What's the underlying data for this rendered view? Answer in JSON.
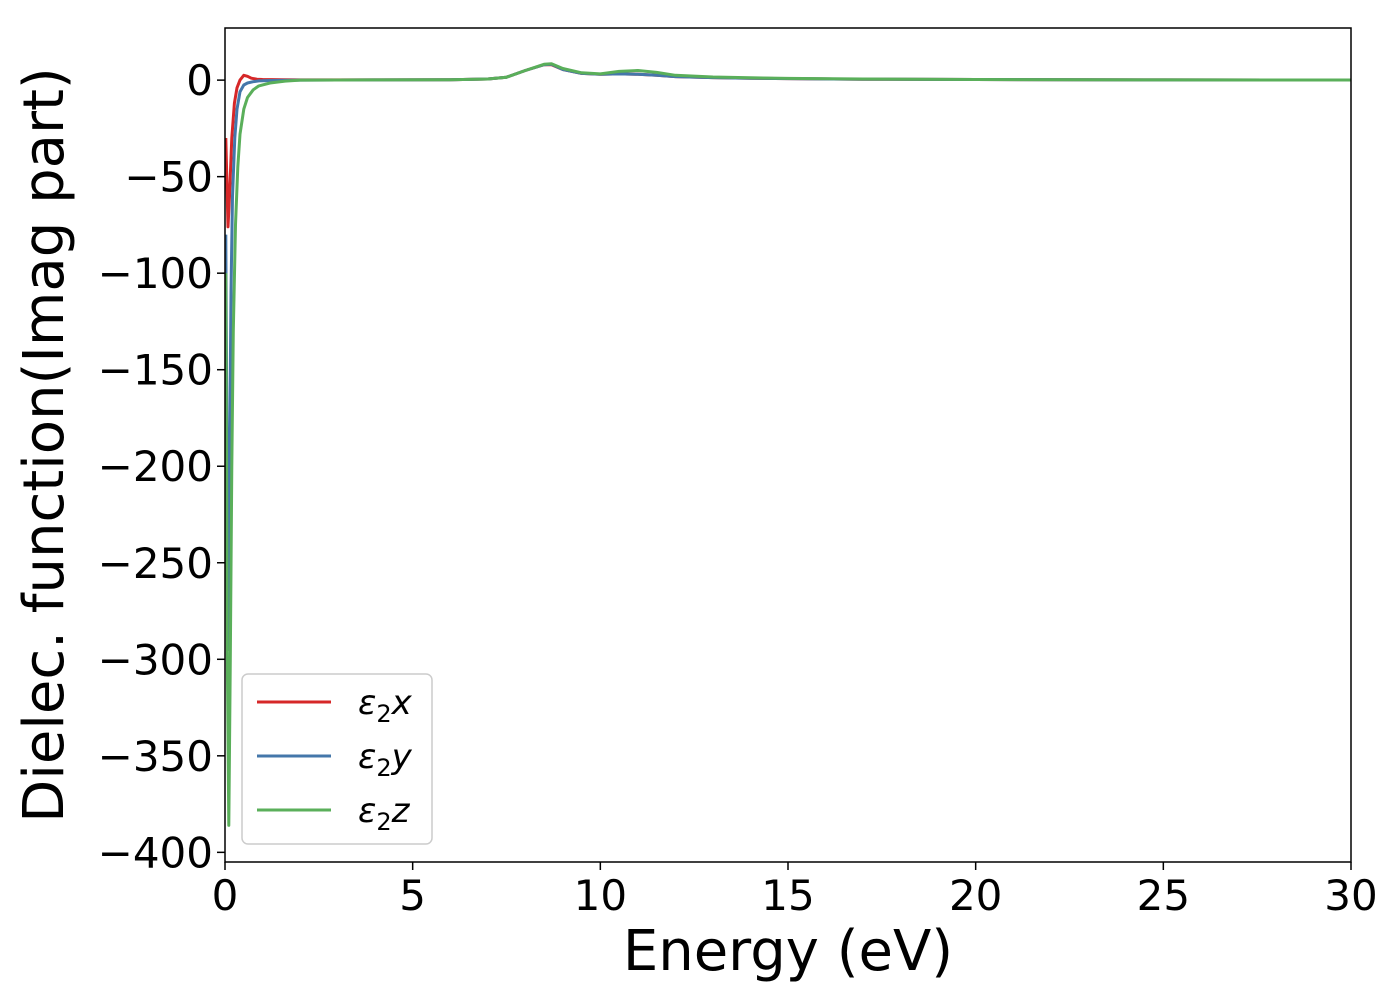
{
  "chart_data": {
    "type": "line",
    "title": "",
    "xlabel": "Energy (eV)",
    "ylabel": "Dielec. function(Imag part)",
    "xlim": [
      0,
      30
    ],
    "ylim": [
      -405,
      27
    ],
    "x_ticks": [
      0,
      5,
      10,
      15,
      20,
      25,
      30
    ],
    "y_ticks": [
      0,
      -50,
      -100,
      -150,
      -200,
      -250,
      -300,
      -350,
      -400
    ],
    "x_tick_labels": [
      "0",
      "5",
      "10",
      "15",
      "20",
      "25",
      "30"
    ],
    "y_tick_labels": [
      "0",
      "−50",
      "−100",
      "−150",
      "−200",
      "−250",
      "−300",
      "−350",
      "−400"
    ],
    "grid": false,
    "legend_position": "lower-left",
    "series": [
      {
        "name": "ε₂x",
        "legend_base": "ε",
        "legend_sub": "2",
        "legend_tail": "x",
        "color": "#d62728",
        "x": [
          0.02,
          0.08,
          0.12,
          0.18,
          0.25,
          0.32,
          0.4,
          0.5,
          0.6,
          0.7,
          0.85,
          1.0,
          1.5,
          2.0,
          4.0,
          6.0,
          7.0,
          7.5,
          8.0,
          8.5,
          8.7,
          9.0,
          9.5,
          10.0,
          10.5,
          11.0,
          11.5,
          12.0,
          13.0,
          14.0,
          15.0,
          17.0,
          20.0,
          25.0,
          30.0
        ],
        "y": [
          -30,
          -76,
          -60,
          -30,
          -12,
          -4,
          0,
          2.5,
          2.0,
          1.0,
          0.5,
          0.3,
          0.2,
          0.1,
          0.1,
          0.2,
          0.6,
          1.5,
          5.0,
          8.0,
          8.0,
          5.5,
          3.5,
          3.0,
          3.2,
          3.0,
          2.5,
          1.8,
          1.3,
          1.0,
          0.8,
          0.5,
          0.3,
          0.1,
          0.05
        ]
      },
      {
        "name": "ε₂y",
        "legend_base": "ε",
        "legend_sub": "2",
        "legend_tail": "y",
        "color": "#4477aa",
        "x": [
          0.02,
          0.08,
          0.12,
          0.16,
          0.2,
          0.26,
          0.32,
          0.4,
          0.5,
          0.6,
          0.75,
          0.9,
          1.2,
          2.0,
          4.0,
          6.0,
          7.0,
          7.5,
          8.0,
          8.5,
          8.7,
          9.0,
          9.5,
          10.0,
          10.5,
          11.0,
          11.5,
          12.0,
          13.0,
          14.0,
          15.0,
          17.0,
          20.0,
          25.0,
          30.0
        ],
        "y": [
          -80,
          -295,
          -200,
          -110,
          -60,
          -30,
          -15,
          -6,
          -2.5,
          -1.5,
          -0.8,
          -0.4,
          -0.2,
          0.0,
          0.1,
          0.2,
          0.6,
          1.5,
          5.0,
          8.0,
          8.2,
          5.5,
          3.5,
          3.0,
          3.2,
          3.0,
          2.5,
          1.8,
          1.3,
          1.0,
          0.8,
          0.5,
          0.3,
          0.1,
          0.05
        ]
      },
      {
        "name": "ε₂z",
        "legend_base": "ε",
        "legend_sub": "2",
        "legend_tail": "z",
        "color": "#5aaf5a",
        "x": [
          0.02,
          0.06,
          0.1,
          0.14,
          0.18,
          0.22,
          0.28,
          0.34,
          0.4,
          0.5,
          0.6,
          0.75,
          0.9,
          1.2,
          1.6,
          2.0,
          4.0,
          6.0,
          7.0,
          7.5,
          8.0,
          8.5,
          8.7,
          9.0,
          9.5,
          10.0,
          10.5,
          11.0,
          11.5,
          12.0,
          13.0,
          14.0,
          15.0,
          17.0,
          20.0,
          25.0,
          30.0
        ],
        "y": [
          -100,
          -298,
          -386,
          -300,
          -200,
          -130,
          -75,
          -45,
          -28,
          -15,
          -9,
          -5,
          -3,
          -1.5,
          -0.5,
          0.0,
          0.1,
          0.2,
          0.6,
          1.5,
          5.0,
          8.2,
          8.5,
          6.0,
          3.8,
          3.2,
          4.5,
          5.0,
          4.0,
          2.5,
          1.6,
          1.2,
          0.9,
          0.6,
          0.3,
          0.1,
          0.05
        ]
      }
    ]
  }
}
